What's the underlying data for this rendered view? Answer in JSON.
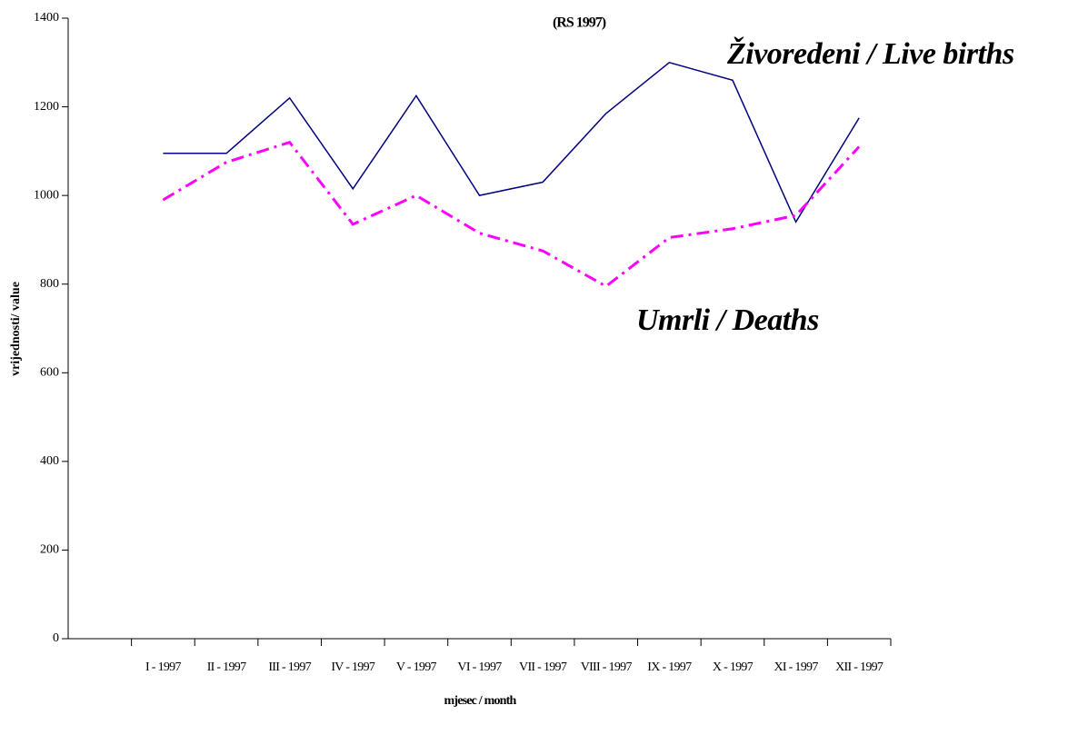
{
  "chart_data": {
    "type": "line",
    "title": "(RS 1997)",
    "x_label": "mjesec / month",
    "y_label": "vrijednosti/ value",
    "categories": [
      null,
      "I - 1997",
      "II - 1997",
      "III - 1997",
      "IV - 1997",
      "V - 1997",
      "VI - 1997",
      "VII - 1997",
      "VIII - 1997",
      "IX - 1997",
      "X - 1997",
      "XI - 1997",
      "XII - 1997"
    ],
    "series": [
      {
        "name": "Živoredeni / Live births",
        "color": "#000080",
        "dash": "solid",
        "values": [
          null,
          1095,
          1095,
          1220,
          1015,
          1225,
          1000,
          1030,
          1185,
          1300,
          1260,
          940,
          1175
        ]
      },
      {
        "name": "Umrli / Deaths",
        "color": "#ff00ff",
        "dash": "dashdot",
        "values": [
          null,
          990,
          1075,
          1120,
          935,
          1000,
          915,
          875,
          795,
          905,
          925,
          955,
          1110
        ]
      }
    ],
    "ylim": [
      0,
      1400
    ],
    "yticks": [
      0,
      200,
      400,
      600,
      800,
      1000,
      1200,
      1400
    ],
    "grid": false
  }
}
